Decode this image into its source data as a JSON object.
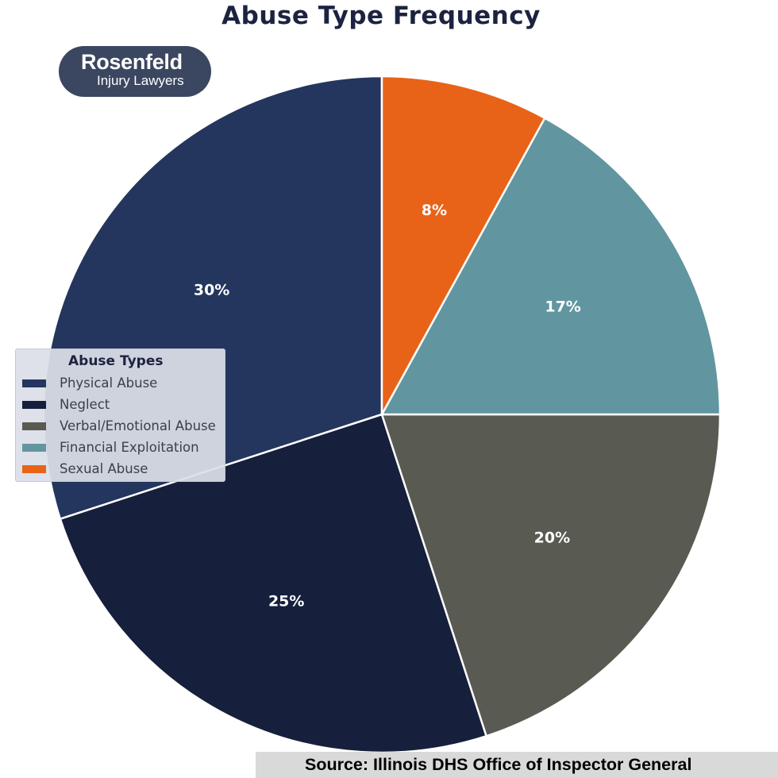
{
  "chart_data": {
    "type": "pie",
    "title": "Abuse Type Frequency",
    "legend_title": "Abuse Types",
    "legend_position": "center-left",
    "slices": [
      {
        "name": "Physical Abuse",
        "value": 30,
        "label": "30%",
        "color": "#24365d"
      },
      {
        "name": "Neglect",
        "value": 25,
        "label": "25%",
        "color": "#161f3b"
      },
      {
        "name": "Verbal/Emotional Abuse",
        "value": 20,
        "label": "20%",
        "color": "#595a52"
      },
      {
        "name": "Financial Exploitation",
        "value": 17,
        "label": "17%",
        "color": "#6196a0"
      },
      {
        "name": "Sexual Abuse",
        "value": 8,
        "label": "8%",
        "color": "#e86318"
      }
    ],
    "start": "top",
    "direction": "counterclockwise"
  },
  "logo": {
    "name": "Rosenfeld",
    "subtitle": "Injury Lawyers",
    "color": "#3b4760"
  },
  "source": {
    "text": "Source: Illinois DHS Office of Inspector General"
  }
}
